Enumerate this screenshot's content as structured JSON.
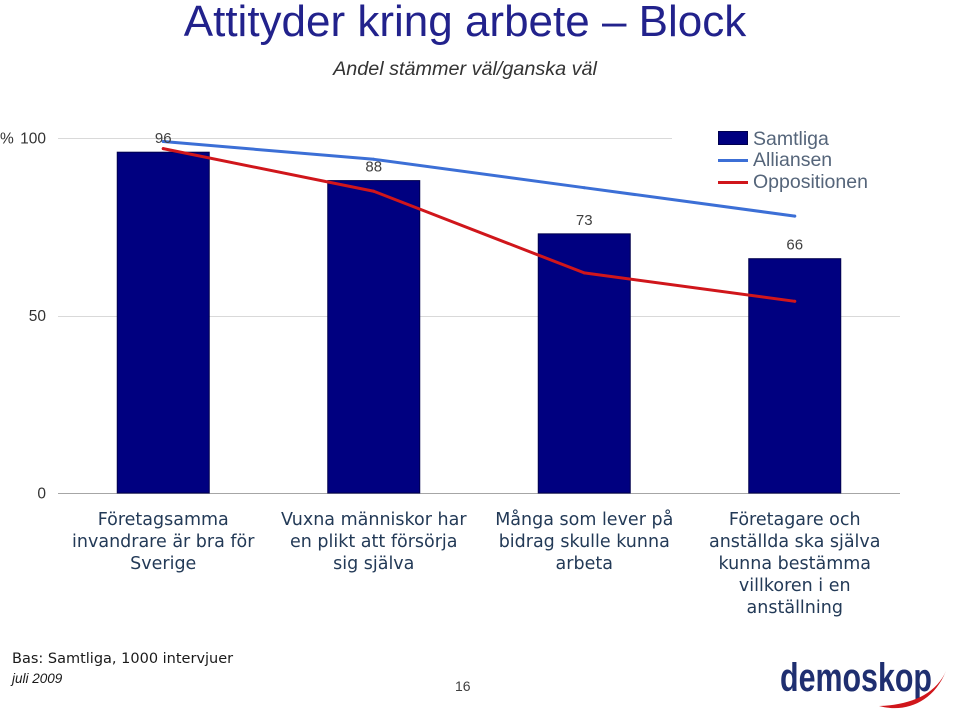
{
  "title": "Attityder kring arbete – Block",
  "subtitle": "Andel stämmer väl/ganska väl",
  "chart_data": {
    "type": "bar",
    "categories": [
      "Företagsamma\ninvandrare är bra för\nSverige",
      "Vuxna människor har\nen plikt att försörja\nsig själva",
      "Många som lever på\nbidrag skulle kunna\narbeta",
      "Företagare och\nanställda ska själva\nkunna bestämma\nvillkoren i en\nanställning"
    ],
    "series": [
      {
        "name": "Samtliga",
        "type": "bar",
        "values": [
          96,
          88,
          73,
          66
        ],
        "color": "#000080"
      },
      {
        "name": "Alliansen",
        "type": "line",
        "values": [
          99,
          94,
          86,
          78
        ],
        "color": "#3c6fd6"
      },
      {
        "name": "Oppositionen",
        "type": "line",
        "values": [
          97,
          85,
          62,
          54
        ],
        "color": "#d0161b"
      }
    ],
    "ylabel": "%",
    "ylim": [
      0,
      100
    ],
    "yticks": [
      0,
      50,
      100
    ],
    "grid": true,
    "legend": "top-right"
  },
  "footer": {
    "base": "Bas: Samtliga, 1000 intervjuer",
    "date": "juli 2009",
    "page_number": "16",
    "logo": "demoskop"
  },
  "colors": {
    "title": "#22228c",
    "logo": "#1f2f70",
    "logo_accent": "#d0161b"
  }
}
